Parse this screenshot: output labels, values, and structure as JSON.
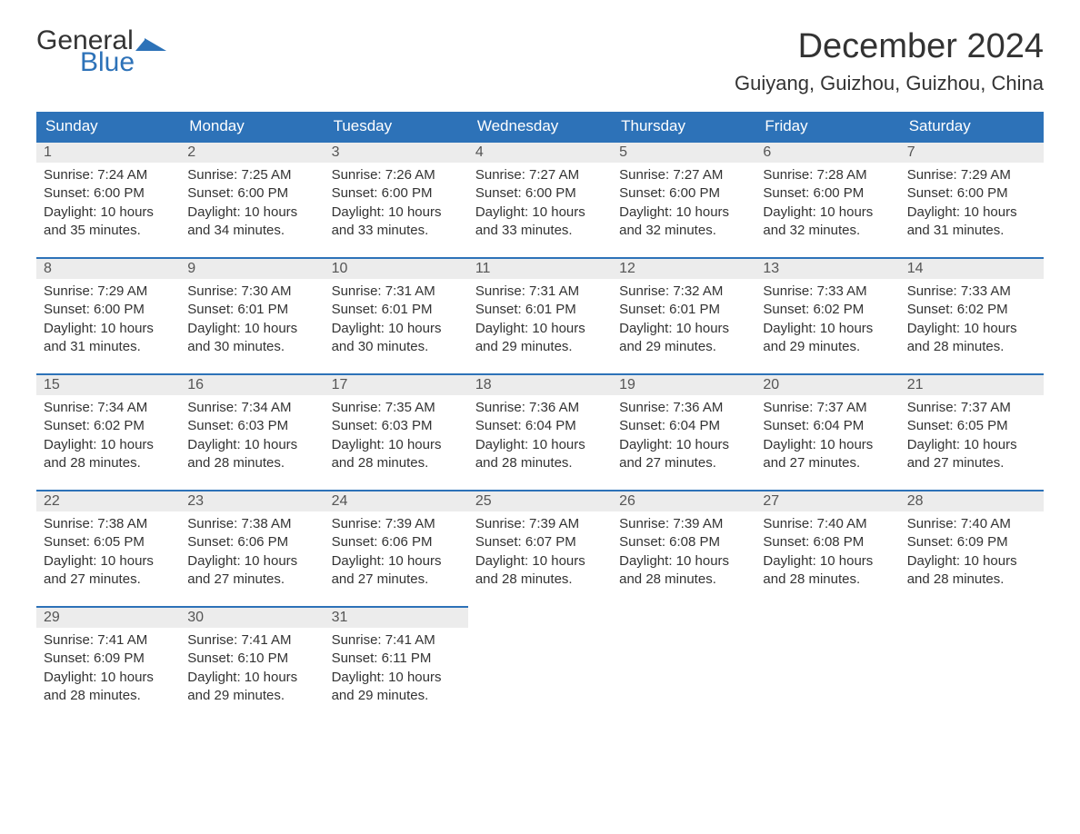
{
  "logo": {
    "text_general": "General",
    "text_blue": "Blue",
    "flag_color": "#2d72b8"
  },
  "title": "December 2024",
  "location": "Guiyang, Guizhou, Guizhou, China",
  "colors": {
    "header_bg": "#2d72b8",
    "header_text": "#ffffff",
    "daynum_bg": "#ececec",
    "daynum_text": "#555555",
    "body_text": "#333333",
    "row_divider": "#2d72b8",
    "page_bg": "#ffffff"
  },
  "fonts": {
    "title_size_pt": 28,
    "location_size_pt": 16,
    "header_size_pt": 13,
    "body_size_pt": 11
  },
  "weekday_labels": [
    "Sunday",
    "Monday",
    "Tuesday",
    "Wednesday",
    "Thursday",
    "Friday",
    "Saturday"
  ],
  "day_field_labels": {
    "sunrise": "Sunrise:",
    "sunset": "Sunset:",
    "daylight": "Daylight:"
  },
  "weeks": [
    [
      {
        "n": "1",
        "sunrise": "7:24 AM",
        "sunset": "6:00 PM",
        "daylight": "10 hours and 35 minutes."
      },
      {
        "n": "2",
        "sunrise": "7:25 AM",
        "sunset": "6:00 PM",
        "daylight": "10 hours and 34 minutes."
      },
      {
        "n": "3",
        "sunrise": "7:26 AM",
        "sunset": "6:00 PM",
        "daylight": "10 hours and 33 minutes."
      },
      {
        "n": "4",
        "sunrise": "7:27 AM",
        "sunset": "6:00 PM",
        "daylight": "10 hours and 33 minutes."
      },
      {
        "n": "5",
        "sunrise": "7:27 AM",
        "sunset": "6:00 PM",
        "daylight": "10 hours and 32 minutes."
      },
      {
        "n": "6",
        "sunrise": "7:28 AM",
        "sunset": "6:00 PM",
        "daylight": "10 hours and 32 minutes."
      },
      {
        "n": "7",
        "sunrise": "7:29 AM",
        "sunset": "6:00 PM",
        "daylight": "10 hours and 31 minutes."
      }
    ],
    [
      {
        "n": "8",
        "sunrise": "7:29 AM",
        "sunset": "6:00 PM",
        "daylight": "10 hours and 31 minutes."
      },
      {
        "n": "9",
        "sunrise": "7:30 AM",
        "sunset": "6:01 PM",
        "daylight": "10 hours and 30 minutes."
      },
      {
        "n": "10",
        "sunrise": "7:31 AM",
        "sunset": "6:01 PM",
        "daylight": "10 hours and 30 minutes."
      },
      {
        "n": "11",
        "sunrise": "7:31 AM",
        "sunset": "6:01 PM",
        "daylight": "10 hours and 29 minutes."
      },
      {
        "n": "12",
        "sunrise": "7:32 AM",
        "sunset": "6:01 PM",
        "daylight": "10 hours and 29 minutes."
      },
      {
        "n": "13",
        "sunrise": "7:33 AM",
        "sunset": "6:02 PM",
        "daylight": "10 hours and 29 minutes."
      },
      {
        "n": "14",
        "sunrise": "7:33 AM",
        "sunset": "6:02 PM",
        "daylight": "10 hours and 28 minutes."
      }
    ],
    [
      {
        "n": "15",
        "sunrise": "7:34 AM",
        "sunset": "6:02 PM",
        "daylight": "10 hours and 28 minutes."
      },
      {
        "n": "16",
        "sunrise": "7:34 AM",
        "sunset": "6:03 PM",
        "daylight": "10 hours and 28 minutes."
      },
      {
        "n": "17",
        "sunrise": "7:35 AM",
        "sunset": "6:03 PM",
        "daylight": "10 hours and 28 minutes."
      },
      {
        "n": "18",
        "sunrise": "7:36 AM",
        "sunset": "6:04 PM",
        "daylight": "10 hours and 28 minutes."
      },
      {
        "n": "19",
        "sunrise": "7:36 AM",
        "sunset": "6:04 PM",
        "daylight": "10 hours and 27 minutes."
      },
      {
        "n": "20",
        "sunrise": "7:37 AM",
        "sunset": "6:04 PM",
        "daylight": "10 hours and 27 minutes."
      },
      {
        "n": "21",
        "sunrise": "7:37 AM",
        "sunset": "6:05 PM",
        "daylight": "10 hours and 27 minutes."
      }
    ],
    [
      {
        "n": "22",
        "sunrise": "7:38 AM",
        "sunset": "6:05 PM",
        "daylight": "10 hours and 27 minutes."
      },
      {
        "n": "23",
        "sunrise": "7:38 AM",
        "sunset": "6:06 PM",
        "daylight": "10 hours and 27 minutes."
      },
      {
        "n": "24",
        "sunrise": "7:39 AM",
        "sunset": "6:06 PM",
        "daylight": "10 hours and 27 minutes."
      },
      {
        "n": "25",
        "sunrise": "7:39 AM",
        "sunset": "6:07 PM",
        "daylight": "10 hours and 28 minutes."
      },
      {
        "n": "26",
        "sunrise": "7:39 AM",
        "sunset": "6:08 PM",
        "daylight": "10 hours and 28 minutes."
      },
      {
        "n": "27",
        "sunrise": "7:40 AM",
        "sunset": "6:08 PM",
        "daylight": "10 hours and 28 minutes."
      },
      {
        "n": "28",
        "sunrise": "7:40 AM",
        "sunset": "6:09 PM",
        "daylight": "10 hours and 28 minutes."
      }
    ],
    [
      {
        "n": "29",
        "sunrise": "7:41 AM",
        "sunset": "6:09 PM",
        "daylight": "10 hours and 28 minutes."
      },
      {
        "n": "30",
        "sunrise": "7:41 AM",
        "sunset": "6:10 PM",
        "daylight": "10 hours and 29 minutes."
      },
      {
        "n": "31",
        "sunrise": "7:41 AM",
        "sunset": "6:11 PM",
        "daylight": "10 hours and 29 minutes."
      },
      null,
      null,
      null,
      null
    ]
  ]
}
